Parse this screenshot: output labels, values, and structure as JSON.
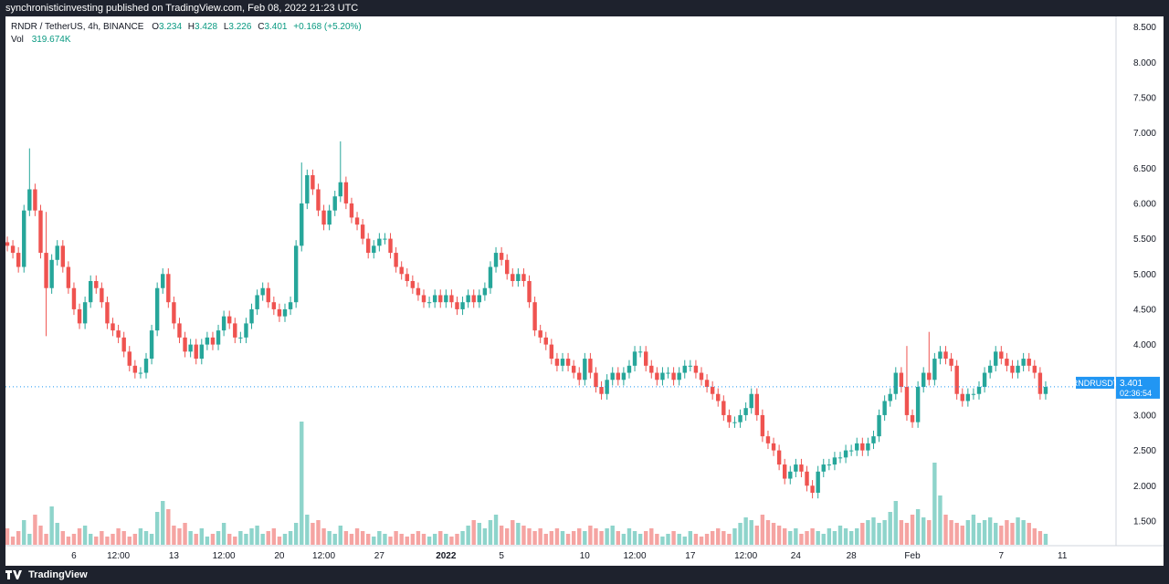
{
  "header": {
    "text": "synchronisticinvesting published on TradingView.com, Feb 08, 2022 21:23 UTC"
  },
  "legend": {
    "symbol": "RNDR / TetherUS, 4h, BINANCE",
    "o_label": "O",
    "o": "3.234",
    "h_label": "H",
    "h": "3.428",
    "l_label": "L",
    "l": "3.226",
    "c_label": "C",
    "c": "3.401",
    "change": "+0.168 (+5.20%)",
    "vol_label": "Vol",
    "vol": "319.674K"
  },
  "price_tag": {
    "symbol": "RNDRUSDT",
    "price": "3.401",
    "countdown": "02:36:54"
  },
  "footer": {
    "brand": "TradingView"
  },
  "colors": {
    "up": "#26a69a",
    "down": "#ef5350",
    "up_vol": "#8ed4cb",
    "down_vol": "#f5a4a2",
    "tag": "#2196f3"
  },
  "chart_data": {
    "type": "candlestick",
    "timeframe": "4h",
    "y_axis": {
      "ticks": [
        "8.500",
        "8.000",
        "7.500",
        "7.000",
        "6.500",
        "6.000",
        "5.500",
        "5.000",
        "4.500",
        "4.000",
        "3.500",
        "3.000",
        "2.500",
        "2.000",
        "1.500"
      ],
      "range": [
        1.15,
        8.65
      ]
    },
    "x_axis": {
      "ticks": [
        {
          "label": "6",
          "bold": false,
          "index": 12
        },
        {
          "label": "12:00",
          "bold": false,
          "index": 20
        },
        {
          "label": "13",
          "bold": false,
          "index": 30
        },
        {
          "label": "12:00",
          "bold": false,
          "index": 39
        },
        {
          "label": "20",
          "bold": false,
          "index": 49
        },
        {
          "label": "12:00",
          "bold": false,
          "index": 57
        },
        {
          "label": "27",
          "bold": false,
          "index": 67
        },
        {
          "label": "2022",
          "bold": true,
          "index": 79
        },
        {
          "label": "5",
          "bold": false,
          "index": 89
        },
        {
          "label": "10",
          "bold": false,
          "index": 104
        },
        {
          "label": "12:00",
          "bold": false,
          "index": 113
        },
        {
          "label": "17",
          "bold": false,
          "index": 123
        },
        {
          "label": "12:00",
          "bold": false,
          "index": 133
        },
        {
          "label": "24",
          "bold": false,
          "index": 142
        },
        {
          "label": "28",
          "bold": false,
          "index": 152
        },
        {
          "label": "Feb",
          "bold": false,
          "index": 163
        },
        {
          "label": "7",
          "bold": false,
          "index": 179
        },
        {
          "label": "11",
          "bold": false,
          "index": 190
        }
      ]
    },
    "last_price": 3.401,
    "close": [
      5.4,
      5.3,
      5.1,
      5.9,
      6.2,
      5.9,
      5.3,
      4.8,
      5.2,
      5.4,
      5.1,
      4.8,
      4.5,
      4.3,
      4.6,
      4.9,
      4.8,
      4.6,
      4.3,
      4.2,
      4.1,
      3.9,
      3.7,
      3.6,
      3.6,
      3.8,
      4.2,
      4.8,
      5.0,
      4.6,
      4.3,
      4.1,
      3.9,
      4.0,
      3.8,
      4.0,
      4.1,
      4.0,
      4.2,
      4.4,
      4.3,
      4.1,
      4.1,
      4.3,
      4.5,
      4.7,
      4.8,
      4.6,
      4.5,
      4.4,
      4.5,
      4.6,
      5.4,
      6.0,
      6.4,
      6.2,
      5.9,
      5.7,
      5.9,
      6.1,
      6.3,
      6.0,
      5.8,
      5.7,
      5.5,
      5.3,
      5.4,
      5.5,
      5.5,
      5.3,
      5.1,
      5.0,
      4.9,
      4.8,
      4.7,
      4.6,
      4.6,
      4.7,
      4.6,
      4.7,
      4.6,
      4.5,
      4.6,
      4.7,
      4.6,
      4.7,
      4.8,
      5.1,
      5.3,
      5.2,
      5.0,
      4.9,
      5.0,
      4.9,
      4.6,
      4.2,
      4.1,
      4.0,
      3.8,
      3.7,
      3.8,
      3.7,
      3.6,
      3.5,
      3.8,
      3.6,
      3.4,
      3.3,
      3.5,
      3.6,
      3.5,
      3.6,
      3.7,
      3.9,
      3.9,
      3.7,
      3.6,
      3.5,
      3.6,
      3.6,
      3.5,
      3.6,
      3.7,
      3.7,
      3.6,
      3.5,
      3.4,
      3.3,
      3.2,
      3.0,
      2.9,
      2.9,
      3.0,
      3.1,
      3.3,
      3.0,
      2.7,
      2.6,
      2.5,
      2.3,
      2.1,
      2.2,
      2.3,
      2.2,
      2.0,
      1.9,
      2.2,
      2.3,
      2.3,
      2.4,
      2.4,
      2.5,
      2.5,
      2.6,
      2.5,
      2.6,
      2.7,
      3.0,
      3.2,
      3.3,
      3.6,
      3.4,
      3.0,
      2.9,
      3.4,
      3.6,
      3.5,
      3.8,
      3.9,
      3.8,
      3.7,
      3.3,
      3.2,
      3.3,
      3.3,
      3.4,
      3.6,
      3.7,
      3.9,
      3.8,
      3.7,
      3.6,
      3.7,
      3.8,
      3.7,
      3.6,
      3.3,
      3.4
    ],
    "spike_indices": [
      4,
      7,
      53,
      60,
      162,
      166
    ],
    "volume": [
      0.6,
      0.3,
      0.5,
      0.9,
      0.4,
      1.1,
      0.7,
      0.4,
      1.4,
      0.8,
      0.5,
      0.3,
      0.4,
      0.6,
      0.7,
      0.4,
      0.3,
      0.5,
      0.3,
      0.4,
      0.6,
      0.5,
      0.3,
      0.4,
      0.6,
      0.5,
      0.4,
      1.2,
      1.6,
      1.3,
      0.7,
      0.6,
      0.8,
      0.5,
      0.4,
      0.6,
      0.3,
      0.4,
      0.5,
      0.8,
      0.4,
      0.3,
      0.5,
      0.4,
      0.6,
      0.7,
      0.4,
      0.5,
      0.6,
      0.3,
      0.4,
      0.5,
      0.8,
      4.5,
      1.1,
      0.8,
      0.9,
      0.6,
      0.5,
      0.4,
      0.7,
      0.5,
      0.4,
      0.6,
      0.5,
      0.4,
      0.3,
      0.5,
      0.4,
      0.3,
      0.5,
      0.4,
      0.3,
      0.4,
      0.5,
      0.4,
      0.3,
      0.4,
      0.5,
      0.4,
      0.3,
      0.4,
      0.5,
      0.7,
      0.9,
      0.8,
      0.6,
      0.9,
      1.1,
      0.7,
      0.6,
      0.9,
      0.8,
      0.7,
      0.6,
      0.5,
      0.6,
      0.4,
      0.5,
      0.6,
      0.5,
      0.4,
      0.5,
      0.6,
      0.5,
      0.7,
      0.6,
      0.5,
      0.6,
      0.7,
      0.5,
      0.4,
      0.6,
      0.5,
      0.4,
      0.5,
      0.6,
      0.4,
      0.3,
      0.4,
      0.5,
      0.4,
      0.3,
      0.5,
      0.4,
      0.3,
      0.4,
      0.5,
      0.6,
      0.5,
      0.4,
      0.6,
      0.8,
      1.0,
      0.9,
      0.7,
      1.1,
      0.9,
      0.8,
      0.7,
      0.6,
      0.5,
      0.6,
      0.4,
      0.5,
      0.6,
      0.5,
      0.4,
      0.6,
      0.5,
      0.7,
      0.6,
      0.5,
      0.6,
      0.8,
      0.9,
      1.0,
      0.8,
      0.9,
      1.2,
      1.6,
      0.9,
      0.8,
      1.1,
      1.3,
      1.0,
      0.9,
      3.0,
      1.8,
      1.1,
      0.9,
      0.8,
      0.7,
      0.9,
      1.1,
      0.8,
      0.9,
      1.0,
      0.8,
      0.7,
      0.9,
      0.8,
      1.0,
      0.9,
      0.8,
      0.6,
      0.5,
      0.4
    ]
  }
}
